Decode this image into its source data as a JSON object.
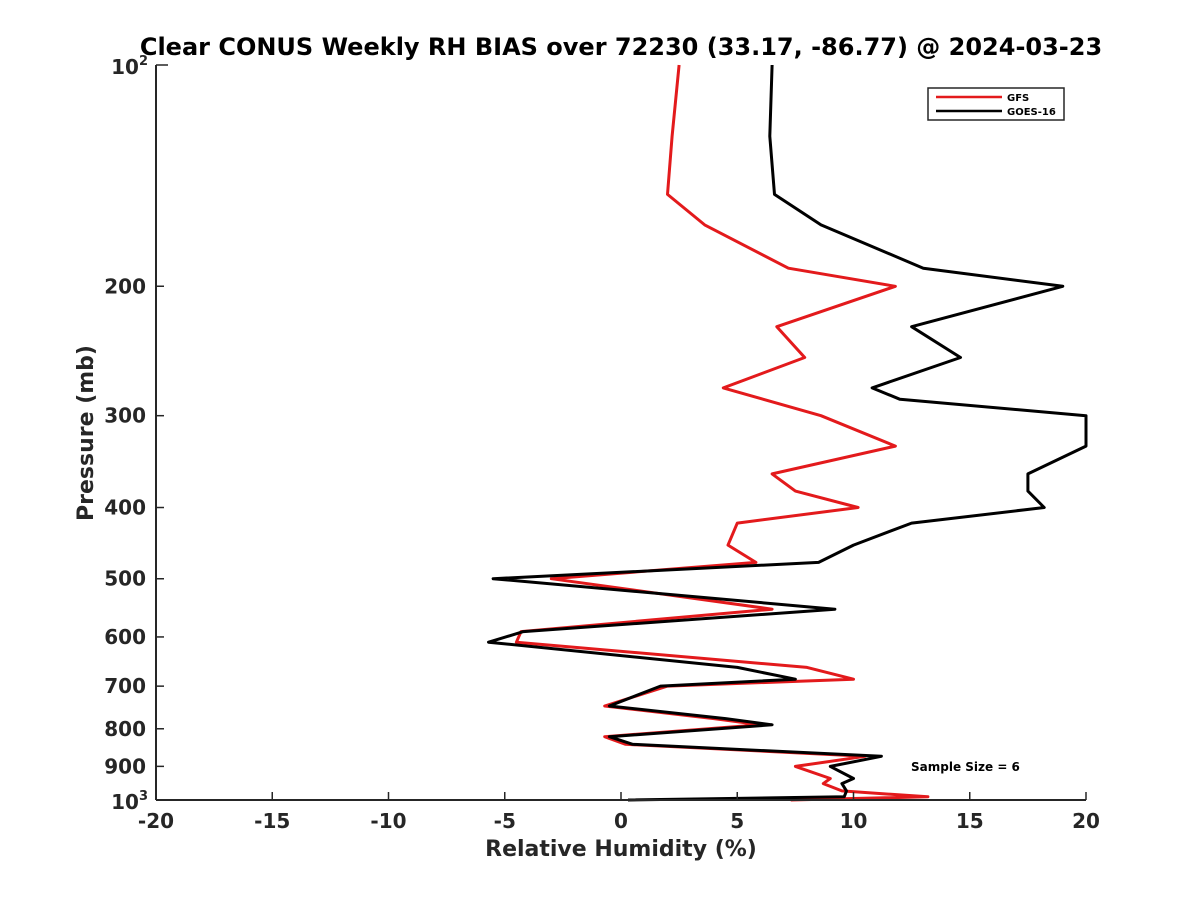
{
  "chart_data": {
    "type": "line",
    "title": "Clear CONUS Weekly RH BIAS over 72230 (33.17, -86.77) @ 2024-03-23",
    "xlabel": "Relative Humidity (%)",
    "ylabel": "Pressure (mb)",
    "xlim": [
      -20,
      20
    ],
    "ylim": [
      100,
      1000
    ],
    "yscale": "log",
    "y_reversed": true,
    "x_ticks": [
      -20,
      -15,
      -10,
      -5,
      0,
      5,
      10,
      15,
      20
    ],
    "x_tick_labels": [
      "-20",
      "-15",
      "-10",
      "-5",
      "0",
      "5",
      "10",
      "15",
      "20"
    ],
    "y_ticks_minor": [
      200,
      300,
      400,
      500,
      600,
      700,
      800,
      900
    ],
    "y_tick_labels_minor": [
      "200",
      "300",
      "400",
      "500",
      "600",
      "700",
      "800",
      "900"
    ],
    "y_ticks_major": [
      {
        "value": 100,
        "base": "10",
        "exp": "2"
      },
      {
        "value": 1000,
        "base": "10",
        "exp": "3"
      }
    ],
    "grid": false,
    "legend_position": "top-right",
    "annotation": "Sample Size = 6",
    "series": [
      {
        "name": "GFS",
        "color": "#e31a1c",
        "points": [
          {
            "p": 100,
            "x": 2.5
          },
          {
            "p": 125,
            "x": 2.2
          },
          {
            "p": 150,
            "x": 2.0
          },
          {
            "p": 165,
            "x": 3.6
          },
          {
            "p": 189,
            "x": 7.2
          },
          {
            "p": 200,
            "x": 11.8
          },
          {
            "p": 227,
            "x": 6.7
          },
          {
            "p": 250,
            "x": 7.9
          },
          {
            "p": 275,
            "x": 4.4
          },
          {
            "p": 300,
            "x": 8.6
          },
          {
            "p": 330,
            "x": 11.8
          },
          {
            "p": 360,
            "x": 6.5
          },
          {
            "p": 380,
            "x": 7.5
          },
          {
            "p": 400,
            "x": 10.2
          },
          {
            "p": 420,
            "x": 5.0
          },
          {
            "p": 450,
            "x": 4.6
          },
          {
            "p": 475,
            "x": 5.8
          },
          {
            "p": 500,
            "x": -3.0
          },
          {
            "p": 550,
            "x": 6.5
          },
          {
            "p": 590,
            "x": -4.3
          },
          {
            "p": 610,
            "x": -4.5
          },
          {
            "p": 660,
            "x": 8.0
          },
          {
            "p": 685,
            "x": 10.0
          },
          {
            "p": 700,
            "x": 2.0
          },
          {
            "p": 745,
            "x": -0.7
          },
          {
            "p": 775,
            "x": 4.0
          },
          {
            "p": 790,
            "x": 6.0
          },
          {
            "p": 820,
            "x": -0.7
          },
          {
            "p": 840,
            "x": 0.2
          },
          {
            "p": 872,
            "x": 10.5
          },
          {
            "p": 900,
            "x": 7.5
          },
          {
            "p": 935,
            "x": 9.0
          },
          {
            "p": 950,
            "x": 8.7
          },
          {
            "p": 972,
            "x": 9.5
          },
          {
            "p": 990,
            "x": 13.2
          },
          {
            "p": 1000,
            "x": 7.3
          }
        ]
      },
      {
        "name": "GOES-16",
        "color": "#000000",
        "points": [
          {
            "p": 100,
            "x": 6.5
          },
          {
            "p": 125,
            "x": 6.4
          },
          {
            "p": 150,
            "x": 6.6
          },
          {
            "p": 165,
            "x": 8.6
          },
          {
            "p": 189,
            "x": 13.0
          },
          {
            "p": 200,
            "x": 19.0
          },
          {
            "p": 227,
            "x": 12.5
          },
          {
            "p": 250,
            "x": 14.6
          },
          {
            "p": 275,
            "x": 10.8
          },
          {
            "p": 285,
            "x": 12.0
          },
          {
            "p": 300,
            "x": 20.0
          },
          {
            "p": 330,
            "x": 20.0
          },
          {
            "p": 360,
            "x": 17.5
          },
          {
            "p": 380,
            "x": 17.5
          },
          {
            "p": 400,
            "x": 18.2
          },
          {
            "p": 420,
            "x": 12.5
          },
          {
            "p": 450,
            "x": 10.0
          },
          {
            "p": 475,
            "x": 8.5
          },
          {
            "p": 500,
            "x": -5.5
          },
          {
            "p": 550,
            "x": 9.2
          },
          {
            "p": 590,
            "x": -4.2
          },
          {
            "p": 610,
            "x": -5.7
          },
          {
            "p": 660,
            "x": 5.0
          },
          {
            "p": 685,
            "x": 7.5
          },
          {
            "p": 700,
            "x": 1.7
          },
          {
            "p": 745,
            "x": -0.5
          },
          {
            "p": 775,
            "x": 4.5
          },
          {
            "p": 790,
            "x": 6.5
          },
          {
            "p": 820,
            "x": -0.5
          },
          {
            "p": 840,
            "x": 0.5
          },
          {
            "p": 872,
            "x": 11.2
          },
          {
            "p": 900,
            "x": 9.0
          },
          {
            "p": 935,
            "x": 10.0
          },
          {
            "p": 950,
            "x": 9.5
          },
          {
            "p": 972,
            "x": 9.7
          },
          {
            "p": 990,
            "x": 9.6
          },
          {
            "p": 1000,
            "x": 0.3
          }
        ]
      }
    ]
  }
}
